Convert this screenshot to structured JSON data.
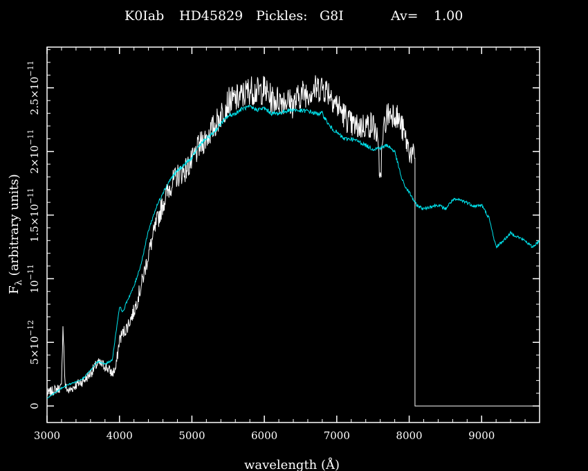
{
  "title": {
    "star_type": "K0Iab",
    "star_name": "HD45829",
    "pickles_label": "Pickles:",
    "pickles_type": "G8I",
    "av_label": "Av=",
    "av_value": "1.00"
  },
  "chart_data": {
    "type": "line",
    "xlabel": "wavelength (Å)",
    "ylabel_main": "F",
    "ylabel_sub": "λ",
    "ylabel_rest": " (arbitrary units)",
    "xlim": [
      3000,
      9800
    ],
    "ylim": [
      -1.3e-12,
      2.82e-11
    ],
    "x_ticks": [
      {
        "value": 3000,
        "label": "3000"
      },
      {
        "value": 4000,
        "label": "4000"
      },
      {
        "value": 5000,
        "label": "5000"
      },
      {
        "value": 6000,
        "label": "6000"
      },
      {
        "value": 7000,
        "label": "7000"
      },
      {
        "value": 8000,
        "label": "8000"
      },
      {
        "value": 9000,
        "label": "9000"
      }
    ],
    "y_ticks": [
      {
        "value": 0,
        "mantissa": "0",
        "exponent": ""
      },
      {
        "value": 5e-12,
        "mantissa": "5×10",
        "exponent": "−12"
      },
      {
        "value": 1e-11,
        "mantissa": "10",
        "exponent": "−11"
      },
      {
        "value": 1.5e-11,
        "mantissa": "1.5×10",
        "exponent": "−11"
      },
      {
        "value": 2e-11,
        "mantissa": "2×10",
        "exponent": "−11"
      },
      {
        "value": 2.5e-11,
        "mantissa": "2.5×10",
        "exponent": "−11"
      }
    ],
    "series": [
      {
        "color": "#ffffff",
        "x": [
          3000,
          3100,
          3200,
          3220,
          3250,
          3300,
          3400,
          3500,
          3600,
          3700,
          3800,
          3900,
          3950,
          4000,
          4050,
          4100,
          4200,
          4300,
          4400,
          4500,
          4600,
          4700,
          4800,
          4900,
          5000,
          5100,
          5200,
          5300,
          5400,
          5500,
          5600,
          5700,
          5800,
          5900,
          6000,
          6100,
          6200,
          6300,
          6400,
          6500,
          6600,
          6700,
          6800,
          6900,
          7000,
          7100,
          7200,
          7300,
          7400,
          7500,
          7550,
          7600,
          7650,
          7700,
          7800,
          7900,
          8000,
          8080,
          8080,
          9800
        ],
        "y": [
          1e-12,
          1.3e-12,
          1.5e-12,
          6.5e-12,
          1.6e-12,
          1.2e-12,
          1.7e-12,
          2e-12,
          2.6e-12,
          3.4e-12,
          3.2e-12,
          2.6e-12,
          3e-12,
          5.3e-12,
          5.8e-12,
          6.2e-12,
          7.5e-12,
          9.5e-12,
          1.2e-11,
          1.42e-11,
          1.6e-11,
          1.74e-11,
          1.82e-11,
          1.86e-11,
          1.93e-11,
          2.05e-11,
          2.12e-11,
          2.2e-11,
          2.3e-11,
          2.4e-11,
          2.42e-11,
          2.45e-11,
          2.5e-11,
          2.48e-11,
          2.5e-11,
          2.42e-11,
          2.42e-11,
          2.42e-11,
          2.38e-11,
          2.46e-11,
          2.48e-11,
          2.5e-11,
          2.52e-11,
          2.48e-11,
          2.38e-11,
          2.3e-11,
          2.22e-11,
          2.2e-11,
          2.22e-11,
          2.22e-11,
          2.15e-11,
          1.8e-11,
          2.2e-11,
          2.3e-11,
          2.32e-11,
          2.2e-11,
          2.02e-11,
          1.95e-11,
          0,
          0
        ]
      },
      {
        "color": "#00e5ee",
        "x": [
          3000,
          3100,
          3200,
          3300,
          3400,
          3500,
          3600,
          3700,
          3800,
          3900,
          4000,
          4050,
          4100,
          4200,
          4300,
          4400,
          4500,
          4600,
          4700,
          4800,
          4900,
          5000,
          5100,
          5200,
          5300,
          5400,
          5500,
          5600,
          5700,
          5800,
          5900,
          6000,
          6100,
          6200,
          6300,
          6400,
          6500,
          6600,
          6700,
          6800,
          6900,
          7000,
          7100,
          7200,
          7300,
          7400,
          7500,
          7600,
          7700,
          7800,
          7900,
          7950,
          8000,
          8100,
          8200,
          8300,
          8400,
          8500,
          8600,
          8700,
          8800,
          8900,
          9000,
          9100,
          9200,
          9300,
          9400,
          9500,
          9600,
          9700,
          9800
        ],
        "y": [
          6e-13,
          1e-12,
          1.4e-12,
          1.7e-12,
          1.9e-12,
          2.2e-12,
          2.8e-12,
          3.5e-12,
          3.3e-12,
          3.6e-12,
          7.8e-12,
          7.4e-12,
          8.2e-12,
          9.4e-12,
          1.12e-11,
          1.38e-11,
          1.55e-11,
          1.68e-11,
          1.78e-11,
          1.85e-11,
          1.9e-11,
          1.95e-11,
          2.05e-11,
          2.1e-11,
          2.15e-11,
          2.22e-11,
          2.28e-11,
          2.3e-11,
          2.34e-11,
          2.35e-11,
          2.33e-11,
          2.34e-11,
          2.3e-11,
          2.3e-11,
          2.32e-11,
          2.33e-11,
          2.32e-11,
          2.32e-11,
          2.3e-11,
          2.3e-11,
          2.2e-11,
          2.15e-11,
          2.1e-11,
          2.1e-11,
          2.08e-11,
          2.05e-11,
          2.02e-11,
          2.03e-11,
          2.05e-11,
          2e-11,
          1.78e-11,
          1.72e-11,
          1.68e-11,
          1.58e-11,
          1.55e-11,
          1.57e-11,
          1.58e-11,
          1.55e-11,
          1.62e-11,
          1.62e-11,
          1.6e-11,
          1.57e-11,
          1.58e-11,
          1.48e-11,
          1.25e-11,
          1.3e-11,
          1.36e-11,
          1.33e-11,
          1.3e-11,
          1.25e-11,
          1.3e-11
        ]
      }
    ]
  }
}
